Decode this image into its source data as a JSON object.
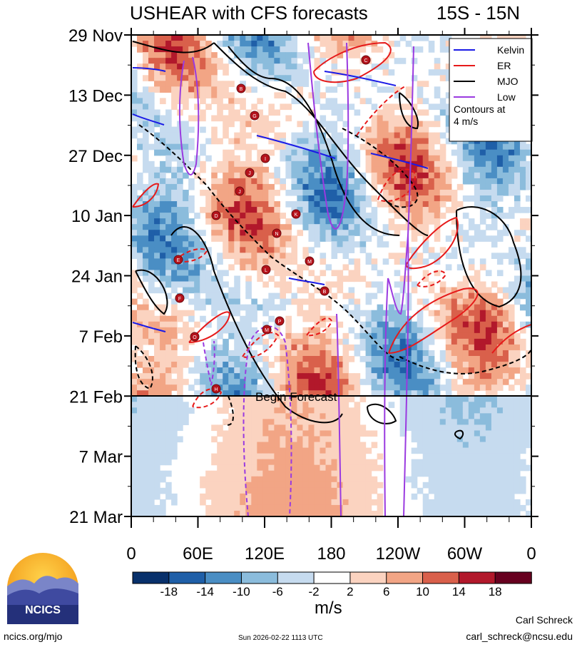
{
  "chart_data": {
    "type": "heatmap",
    "title": "USHEAR with CFS forecasts",
    "region": "15S - 15N",
    "y_ticks": [
      "29 Nov",
      "13 Dec",
      "27 Dec",
      "10 Jan",
      "24 Jan",
      "7 Feb",
      "21 Feb",
      "7 Mar",
      "21 Mar"
    ],
    "x_ticks": [
      "0",
      "60E",
      "120E",
      "180",
      "120W",
      "60W",
      "0"
    ],
    "colorbar": {
      "unit": "m/s",
      "tick_labels": [
        "-18",
        "-14",
        "-10",
        "-6",
        "-2",
        "2",
        "6",
        "10",
        "14",
        "18"
      ],
      "colors": [
        "#08306b",
        "#1f5fa8",
        "#4a8ec4",
        "#8bbcdc",
        "#c6dbef",
        "#ffffff",
        "#fbd3c0",
        "#f2a585",
        "#d9604b",
        "#b2182b",
        "#67001f"
      ]
    },
    "legend": [
      {
        "name": "Kelvin",
        "color": "#1a1ae6"
      },
      {
        "name": "ER",
        "color": "#e61a1a"
      },
      {
        "name": "MJO",
        "color": "#000000"
      },
      {
        "name": "Low",
        "color": "#9a3ae0"
      }
    ],
    "legend_note": "Contours at\n4 m/s",
    "forecast_label": "Begin Forecast",
    "forecast_start": "21 Feb",
    "storms": [
      "B",
      "G",
      "I",
      "J",
      "J",
      "D",
      "K",
      "N",
      "E",
      "L",
      "M",
      "B",
      "F",
      "O",
      "P",
      "M",
      "H",
      "C"
    ]
  },
  "footer": {
    "logo_text": "NCICS",
    "url": "ncics.org/mjo",
    "timestamp": "Sun 2026-02-22 1113 UTC",
    "author": "Carl Schreck",
    "email": "carl_schreck@ncsu.edu"
  }
}
